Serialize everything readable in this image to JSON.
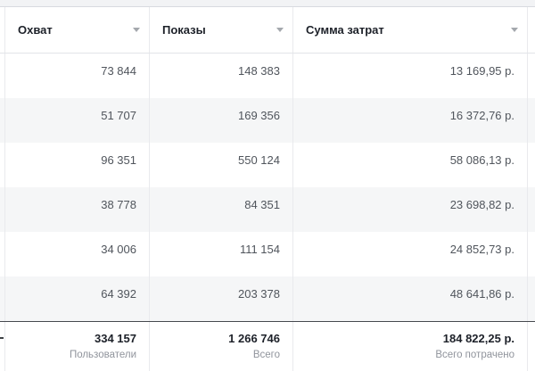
{
  "colors": {
    "stripe": "#f5f6f7",
    "column_border": "#e9eaed",
    "header_border": "#e2e4e8",
    "totals_top_border": "#46494e",
    "header_text": "#1d2129",
    "value_text": "#50555c",
    "muted_text": "#90949c",
    "sort_chevron": "#a4a8ad",
    "top_strip_bg": "#f2f3f5"
  },
  "table": {
    "columns": [
      {
        "label": "Охват",
        "sort_icon": "chevron-down-icon"
      },
      {
        "label": "Показы",
        "sort_icon": "chevron-down-icon"
      },
      {
        "label": "Сумма затрат",
        "sort_icon": "chevron-down-icon"
      }
    ],
    "rows": [
      {
        "reach": "73 844",
        "impressions": "148 383",
        "spend": "13 169,95 р."
      },
      {
        "reach": "51 707",
        "impressions": "169 356",
        "spend": "16 372,76 р."
      },
      {
        "reach": "96 351",
        "impressions": "550 124",
        "spend": "58 086,13 р."
      },
      {
        "reach": "38 778",
        "impressions": "84 351",
        "spend": "23 698,82 р."
      },
      {
        "reach": "34 006",
        "impressions": "111 154",
        "spend": "24 852,73 р."
      },
      {
        "reach": "64 392",
        "impressions": "203 378",
        "spend": "48 641,86 р."
      }
    ],
    "totals": {
      "reach": {
        "value": "334 157",
        "label": "Пользователи"
      },
      "impressions": {
        "value": "1 266 746",
        "label": "Всего"
      },
      "spend": {
        "value": "184 822,25 р.",
        "label": "Всего потрачено"
      }
    }
  }
}
